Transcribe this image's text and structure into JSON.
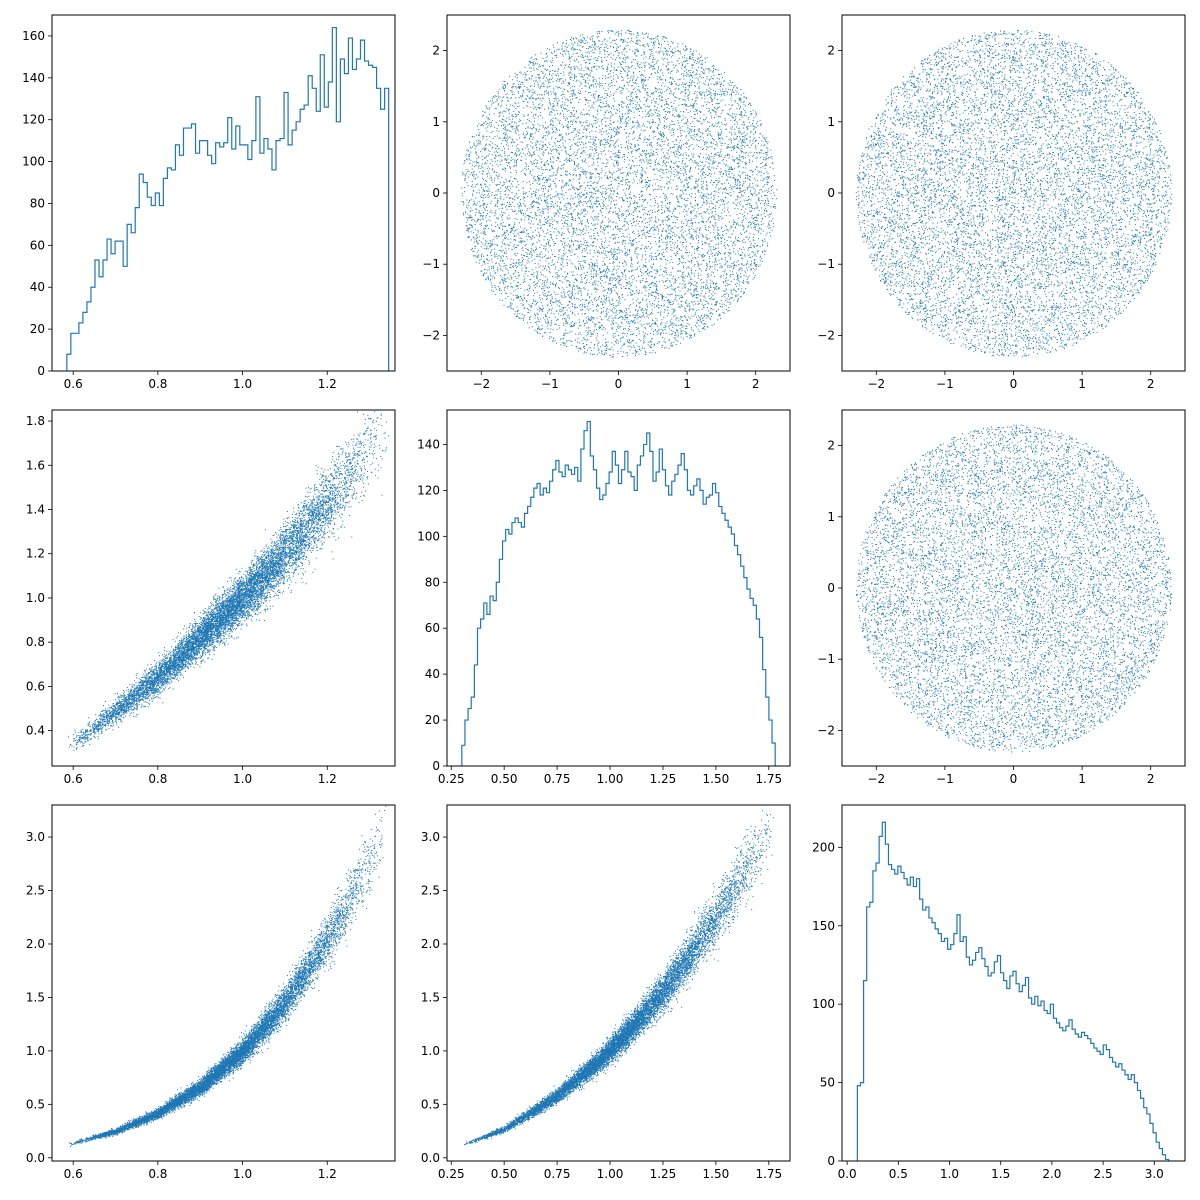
{
  "figure": {
    "layout": "3x3 corner plot (pair plot)",
    "accent_color": "#1f77b4",
    "frame_color": "#000000",
    "background_color": "#ffffff"
  },
  "chart_data": [
    {
      "panel": "row1-col1",
      "type": "histogram",
      "style": "step",
      "bin_range": [
        0.585,
        1.345
      ],
      "bins": 80,
      "counts": [
        8,
        18,
        18,
        23,
        28,
        33,
        40,
        53,
        45,
        53,
        63,
        56,
        62,
        62,
        50,
        70,
        66,
        78,
        94,
        90,
        83,
        79,
        85,
        79,
        92,
        97,
        96,
        108,
        103,
        116,
        116,
        118,
        104,
        110,
        110,
        103,
        99,
        109,
        107,
        109,
        121,
        106,
        117,
        108,
        108,
        101,
        110,
        131,
        104,
        111,
        106,
        96,
        110,
        111,
        133,
        108,
        115,
        119,
        125,
        127,
        141,
        135,
        124,
        151,
        126,
        138,
        164,
        119,
        149,
        142,
        159,
        144,
        149,
        158,
        148,
        146,
        145,
        135,
        125,
        135
      ],
      "xlim": [
        0.55,
        1.36
      ],
      "ylim": [
        0,
        170
      ],
      "xticks": [
        0.6,
        0.8,
        1.0,
        1.2
      ],
      "xtick_labels": [
        "0.6",
        "0.8",
        "1.0",
        "1.2"
      ],
      "yticks": [
        0,
        20,
        40,
        60,
        80,
        100,
        120,
        140,
        160
      ],
      "ytick_labels": [
        "0",
        "20",
        "40",
        "60",
        "80",
        "100",
        "120",
        "140",
        "160"
      ]
    },
    {
      "panel": "row1-col2",
      "type": "scatter",
      "shape": "uniform disk",
      "center": [
        0,
        0
      ],
      "radius": 2.3,
      "n_points": 10000,
      "xlim": [
        -2.5,
        2.5
      ],
      "ylim": [
        -2.5,
        2.5
      ],
      "xticks": [
        -2,
        -1,
        0,
        1,
        2
      ],
      "xtick_labels": [
        "−2",
        "−1",
        "0",
        "1",
        "2"
      ],
      "yticks": [
        -2,
        -1,
        0,
        1,
        2
      ],
      "ytick_labels": [
        "−2",
        "−1",
        "0",
        "1",
        "2"
      ]
    },
    {
      "panel": "row1-col3",
      "type": "scatter",
      "shape": "uniform disk",
      "center": [
        0,
        0
      ],
      "radius": 2.3,
      "n_points": 10000,
      "xlim": [
        -2.5,
        2.5
      ],
      "ylim": [
        -2.5,
        2.5
      ],
      "xticks": [
        -2,
        -1,
        0,
        1,
        2
      ],
      "xtick_labels": [
        "−2",
        "−1",
        "0",
        "1",
        "2"
      ],
      "yticks": [
        -2,
        -1,
        0,
        1,
        2
      ],
      "ytick_labels": [
        "−2",
        "−1",
        "0",
        "1",
        "2"
      ]
    },
    {
      "panel": "row2-col1",
      "type": "scatter",
      "shape": "curved band",
      "x_range": [
        0.585,
        1.345
      ],
      "y_centre_points": [
        [
          0.6,
          0.34
        ],
        [
          0.7,
          0.49
        ],
        [
          0.8,
          0.64
        ],
        [
          0.9,
          0.82
        ],
        [
          1.0,
          1.0
        ],
        [
          1.1,
          1.2
        ],
        [
          1.2,
          1.43
        ],
        [
          1.3,
          1.68
        ],
        [
          1.34,
          1.77
        ]
      ],
      "n_points": 10000,
      "xlim": [
        0.55,
        1.36
      ],
      "ylim": [
        0.24,
        1.85
      ],
      "xticks": [
        0.6,
        0.8,
        1.0,
        1.2
      ],
      "xtick_labels": [
        "0.6",
        "0.8",
        "1.0",
        "1.2"
      ],
      "yticks": [
        0.4,
        0.6,
        0.8,
        1.0,
        1.2,
        1.4,
        1.6,
        1.8
      ],
      "ytick_labels": [
        "0.4",
        "0.6",
        "0.8",
        "1.0",
        "1.2",
        "1.4",
        "1.6",
        "1.8"
      ]
    },
    {
      "panel": "row2-col2",
      "type": "histogram",
      "style": "step",
      "bin_range": [
        0.3,
        1.78
      ],
      "bins": 100,
      "counts": [
        9,
        20,
        25,
        30,
        44,
        60,
        64,
        71,
        66,
        74,
        72,
        80,
        90,
        98,
        103,
        101,
        106,
        108,
        106,
        104,
        110,
        113,
        117,
        121,
        123,
        118,
        121,
        119,
        124,
        129,
        133,
        128,
        126,
        131,
        129,
        127,
        130,
        124,
        138,
        146,
        150,
        135,
        129,
        121,
        116,
        118,
        123,
        128,
        137,
        131,
        123,
        129,
        137,
        128,
        126,
        120,
        131,
        135,
        140,
        145,
        137,
        124,
        128,
        138,
        129,
        122,
        118,
        124,
        127,
        131,
        136,
        129,
        120,
        118,
        122,
        125,
        120,
        114,
        117,
        118,
        123,
        119,
        113,
        110,
        107,
        104,
        101,
        96,
        92,
        87,
        82,
        77,
        73,
        70,
        64,
        56,
        42,
        30,
        20,
        10
      ],
      "xlim": [
        0.23,
        1.85
      ],
      "ylim": [
        0,
        155
      ],
      "xticks": [
        0.25,
        0.5,
        0.75,
        1.0,
        1.25,
        1.5,
        1.75
      ],
      "xtick_labels": [
        "0.25",
        "0.50",
        "0.75",
        "1.00",
        "1.25",
        "1.50",
        "1.75"
      ],
      "yticks": [
        0,
        20,
        40,
        60,
        80,
        100,
        120,
        140
      ],
      "ytick_labels": [
        "0",
        "20",
        "40",
        "60",
        "80",
        "100",
        "120",
        "140"
      ]
    },
    {
      "panel": "row2-col3",
      "type": "scatter",
      "shape": "uniform disk",
      "center": [
        0,
        0
      ],
      "radius": 2.3,
      "n_points": 10000,
      "xlim": [
        -2.5,
        2.5
      ],
      "ylim": [
        -2.5,
        2.5
      ],
      "xticks": [
        -2,
        -1,
        0,
        1,
        2
      ],
      "xtick_labels": [
        "−2",
        "−1",
        "0",
        "1",
        "2"
      ],
      "yticks": [
        -2,
        -1,
        0,
        1,
        2
      ],
      "ytick_labels": [
        "−2",
        "−1",
        "0",
        "1",
        "2"
      ]
    },
    {
      "panel": "row3-col1",
      "type": "scatter",
      "shape": "curved band",
      "x_range": [
        0.585,
        1.345
      ],
      "y_centre_points": [
        [
          0.6,
          0.14
        ],
        [
          0.7,
          0.25
        ],
        [
          0.8,
          0.42
        ],
        [
          0.9,
          0.66
        ],
        [
          1.0,
          1.0
        ],
        [
          1.1,
          1.45
        ],
        [
          1.2,
          2.04
        ],
        [
          1.3,
          2.76
        ],
        [
          1.34,
          3.08
        ]
      ],
      "n_points": 10000,
      "xlim": [
        0.55,
        1.36
      ],
      "ylim": [
        -0.03,
        3.3
      ],
      "xticks": [
        0.6,
        0.8,
        1.0,
        1.2
      ],
      "xtick_labels": [
        "0.6",
        "0.8",
        "1.0",
        "1.2"
      ],
      "yticks": [
        0.0,
        0.5,
        1.0,
        1.5,
        2.0,
        2.5,
        3.0
      ],
      "ytick_labels": [
        "0.0",
        "0.5",
        "1.0",
        "1.5",
        "2.0",
        "2.5",
        "3.0"
      ]
    },
    {
      "panel": "row3-col2",
      "type": "scatter",
      "shape": "curved band",
      "x_range": [
        0.3,
        1.78
      ],
      "y_centre_points": [
        [
          0.3,
          0.12
        ],
        [
          0.5,
          0.27
        ],
        [
          0.75,
          0.58
        ],
        [
          1.0,
          1.0
        ],
        [
          1.25,
          1.55
        ],
        [
          1.5,
          2.24
        ],
        [
          1.75,
          3.04
        ]
      ],
      "n_points": 10000,
      "xlim": [
        0.23,
        1.85
      ],
      "ylim": [
        -0.03,
        3.3
      ],
      "xticks": [
        0.25,
        0.5,
        0.75,
        1.0,
        1.25,
        1.5,
        1.75
      ],
      "xtick_labels": [
        "0.25",
        "0.50",
        "0.75",
        "1.00",
        "1.25",
        "1.50",
        "1.75"
      ],
      "yticks": [
        0.0,
        0.5,
        1.0,
        1.5,
        2.0,
        2.5,
        3.0
      ],
      "ytick_labels": [
        "0.0",
        "0.5",
        "1.0",
        "1.5",
        "2.0",
        "2.5",
        "3.0"
      ]
    },
    {
      "panel": "row3-col3",
      "type": "histogram",
      "style": "step",
      "bin_range": [
        0.1,
        3.14
      ],
      "bins": 100,
      "counts": [
        48,
        50,
        115,
        162,
        165,
        185,
        190,
        207,
        216,
        202,
        189,
        186,
        183,
        188,
        184,
        180,
        176,
        181,
        175,
        180,
        167,
        160,
        162,
        155,
        152,
        148,
        145,
        140,
        142,
        135,
        138,
        145,
        157,
        140,
        143,
        130,
        125,
        128,
        133,
        136,
        129,
        124,
        118,
        120,
        127,
        131,
        120,
        115,
        110,
        118,
        121,
        113,
        108,
        112,
        117,
        104,
        100,
        105,
        99,
        102,
        96,
        94,
        100,
        91,
        88,
        85,
        83,
        86,
        90,
        84,
        81,
        79,
        82,
        80,
        78,
        75,
        72,
        70,
        68,
        74,
        71,
        66,
        63,
        60,
        62,
        58,
        55,
        52,
        55,
        50,
        45,
        40,
        34,
        30,
        24,
        18,
        12,
        8,
        4,
        1
      ],
      "xlim": [
        -0.05,
        3.3
      ],
      "ylim": [
        0,
        227
      ],
      "xticks": [
        0.0,
        0.5,
        1.0,
        1.5,
        2.0,
        2.5,
        3.0
      ],
      "xtick_labels": [
        "0.0",
        "0.5",
        "1.0",
        "1.5",
        "2.0",
        "2.5",
        "3.0"
      ],
      "yticks": [
        0,
        50,
        100,
        150,
        200
      ],
      "ytick_labels": [
        "0",
        "50",
        "100",
        "150",
        "200"
      ]
    }
  ]
}
